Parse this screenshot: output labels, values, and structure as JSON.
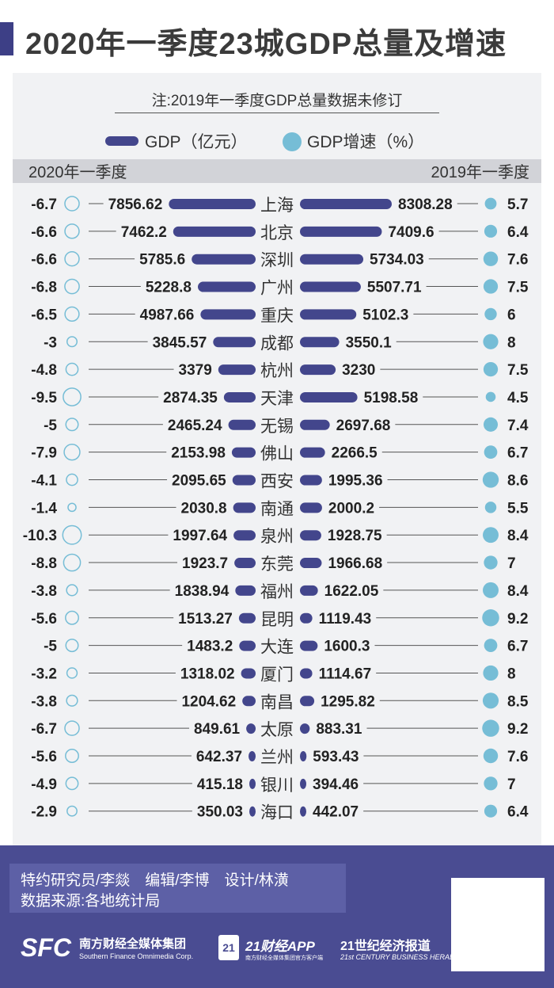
{
  "title": "2020年一季度23城GDP总量及增速",
  "note": "注:2019年一季度GDP总量数据未修订",
  "chart_data": {
    "type": "bar",
    "legend": {
      "gdp": "GDP（亿元）",
      "growth": "GDP增速（%）"
    },
    "left_header": "2020年一季度",
    "right_header": "2019年一季度",
    "unit": "亿元",
    "cities": [
      "上海",
      "北京",
      "深圳",
      "广州",
      "重庆",
      "成都",
      "杭州",
      "天津",
      "无锡",
      "佛山",
      "西安",
      "南通",
      "泉州",
      "东莞",
      "福州",
      "昆明",
      "大连",
      "厦门",
      "南昌",
      "太原",
      "兰州",
      "银川",
      "海口"
    ],
    "series": [
      {
        "name": "2020年一季度 GDP",
        "values": [
          "7856.62",
          "7462.2",
          "5785.6",
          "5228.8",
          "4987.66",
          "3845.57",
          "3379",
          "2874.35",
          "2465.24",
          "2153.98",
          "2095.65",
          "2030.8",
          "1997.64",
          "1923.7",
          "1838.94",
          "1513.27",
          "1483.2",
          "1318.02",
          "1204.62",
          "849.61",
          "642.37",
          "415.18",
          "350.03"
        ]
      },
      {
        "name": "2020年一季度 GDP增速",
        "values": [
          "-6.7",
          "-6.6",
          "-6.6",
          "-6.8",
          "-6.5",
          "-3",
          "-4.8",
          "-9.5",
          "-5",
          "-7.9",
          "-4.1",
          "-1.4",
          "-10.3",
          "-8.8",
          "-3.8",
          "-5.6",
          "-5",
          "-3.2",
          "-3.8",
          "-6.7",
          "-5.6",
          "-4.9",
          "-2.9"
        ]
      },
      {
        "name": "2019年一季度 GDP",
        "values": [
          "8308.28",
          "7409.6",
          "5734.03",
          "5507.71",
          "5102.3",
          "3550.1",
          "3230",
          "5198.58",
          "2697.68",
          "2266.5",
          "1995.36",
          "2000.2",
          "1928.75",
          "1966.68",
          "1622.05",
          "1119.43",
          "1600.3",
          "1114.67",
          "1295.82",
          "883.31",
          "593.43",
          "394.46",
          "442.07"
        ]
      },
      {
        "name": "2019年一季度 GDP增速",
        "values": [
          "5.7",
          "6.4",
          "7.6",
          "7.5",
          "6",
          "8",
          "7.5",
          "4.5",
          "7.4",
          "6.7",
          "8.6",
          "5.5",
          "8.4",
          "7",
          "8.4",
          "9.2",
          "6.7",
          "8",
          "8.5",
          "9.2",
          "7.6",
          "7",
          "6.4"
        ]
      }
    ]
  },
  "footer": {
    "credits_line1": "特约研究员/李燚　编辑/李博　设计/林潢",
    "credits_line2": "数据来源:各地统计局",
    "sfc_logo": "SFC",
    "sfc_name": "南方财经全媒体集团",
    "sfc_en": "Southern Finance Omnimedia Corp.",
    "app_badge": "21",
    "app_name": "21财经APP",
    "app_sub": "南方财经全媒体集团官方客户端",
    "herald_name": "21世纪经济报道",
    "herald_en": "21st CENTURY BUSINESS HERALD"
  },
  "colors": {
    "bar": "#43468c",
    "dot": "#76bdd6",
    "footer": "#4a4c92",
    "text": "#222222"
  }
}
